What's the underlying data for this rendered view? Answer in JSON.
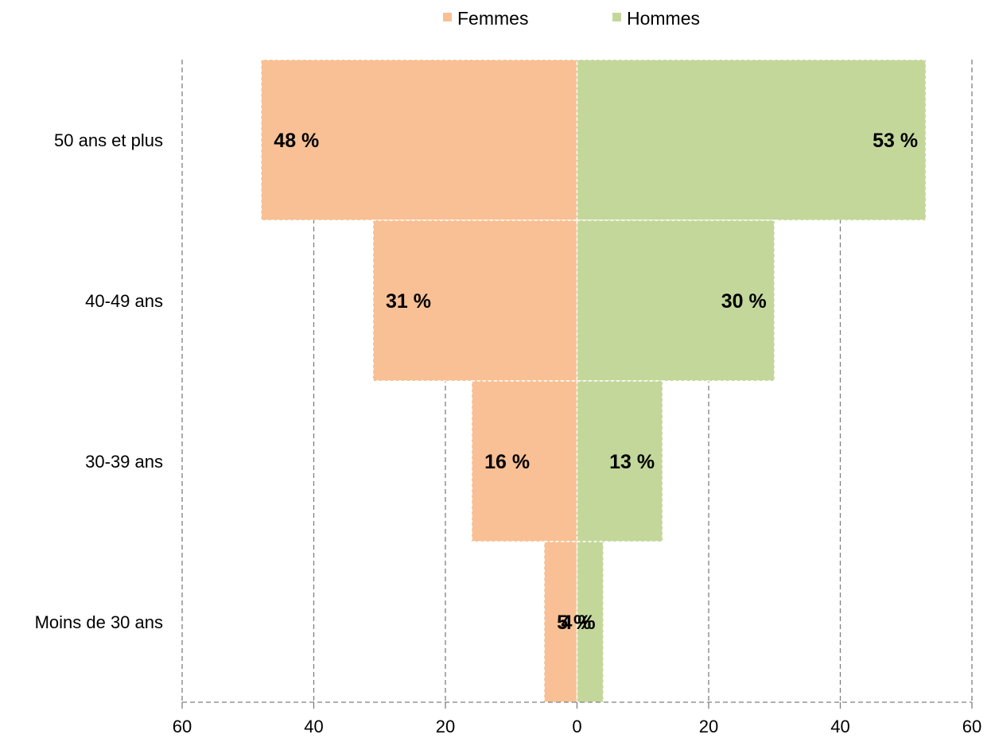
{
  "chart_data": {
    "type": "bar",
    "orientation": "horizontal",
    "layout": "population-pyramid",
    "categories": [
      "50 ans et plus",
      "40-49 ans",
      "30-39 ans",
      "Moins de 30 ans"
    ],
    "series": [
      {
        "name": "Femmes",
        "side": "left",
        "color": "#F8C094",
        "values": [
          48,
          31,
          16,
          5
        ],
        "labels": [
          "48 %",
          "31 %",
          "16 %",
          "5 %"
        ]
      },
      {
        "name": "Hommes",
        "side": "right",
        "color": "#C4D79B",
        "values": [
          53,
          30,
          13,
          4
        ],
        "labels": [
          "53 %",
          "30 %",
          "13 %",
          "4 %"
        ]
      }
    ],
    "xlim": [
      -60,
      60
    ],
    "x_ticks": [
      {
        "value": -60,
        "label": "60"
      },
      {
        "value": -40,
        "label": "40"
      },
      {
        "value": -20,
        "label": "20"
      },
      {
        "value": 0,
        "label": "0"
      },
      {
        "value": 20,
        "label": "20"
      },
      {
        "value": 40,
        "label": "40"
      },
      {
        "value": 60,
        "label": "60"
      }
    ],
    "grid": "vertical-dashed",
    "legend_position": "top-center",
    "grid_color": "#808080"
  }
}
